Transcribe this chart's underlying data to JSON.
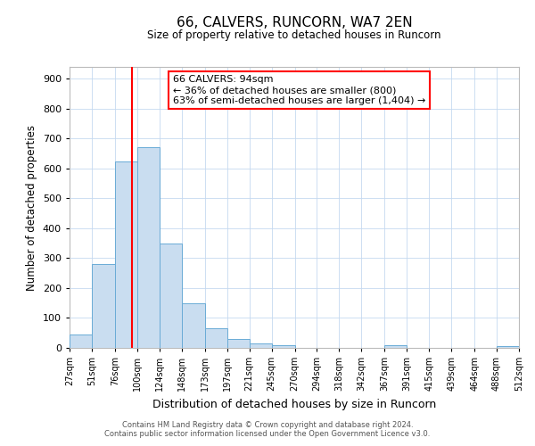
{
  "title": "66, CALVERS, RUNCORN, WA7 2EN",
  "subtitle": "Size of property relative to detached houses in Runcorn",
  "xlabel": "Distribution of detached houses by size in Runcorn",
  "ylabel": "Number of detached properties",
  "bin_labels": [
    "27sqm",
    "51sqm",
    "76sqm",
    "100sqm",
    "124sqm",
    "148sqm",
    "173sqm",
    "197sqm",
    "221sqm",
    "245sqm",
    "270sqm",
    "294sqm",
    "318sqm",
    "342sqm",
    "367sqm",
    "391sqm",
    "415sqm",
    "439sqm",
    "464sqm",
    "488sqm",
    "512sqm"
  ],
  "bin_edges": [
    27,
    51,
    76,
    100,
    124,
    148,
    173,
    197,
    221,
    245,
    270,
    294,
    318,
    342,
    367,
    391,
    415,
    439,
    464,
    488,
    512
  ],
  "bar_heights": [
    45,
    280,
    623,
    670,
    348,
    148,
    65,
    30,
    15,
    10,
    0,
    0,
    0,
    0,
    10,
    0,
    0,
    0,
    0,
    5
  ],
  "bar_color": "#c9ddf0",
  "bar_edge_color": "#6aabd6",
  "vline_x": 94,
  "vline_color": "red",
  "ylim": [
    0,
    940
  ],
  "yticks": [
    0,
    100,
    200,
    300,
    400,
    500,
    600,
    700,
    800,
    900
  ],
  "annotation_line1": "66 CALVERS: 94sqm",
  "annotation_line2": "← 36% of detached houses are smaller (800)",
  "annotation_line3": "63% of semi-detached houses are larger (1,404) →",
  "annotation_box_color": "#ffffff",
  "annotation_box_edge_color": "red",
  "footer_line1": "Contains HM Land Registry data © Crown copyright and database right 2024.",
  "footer_line2": "Contains public sector information licensed under the Open Government Licence v3.0.",
  "background_color": "#ffffff",
  "grid_color": "#c5d9f0"
}
